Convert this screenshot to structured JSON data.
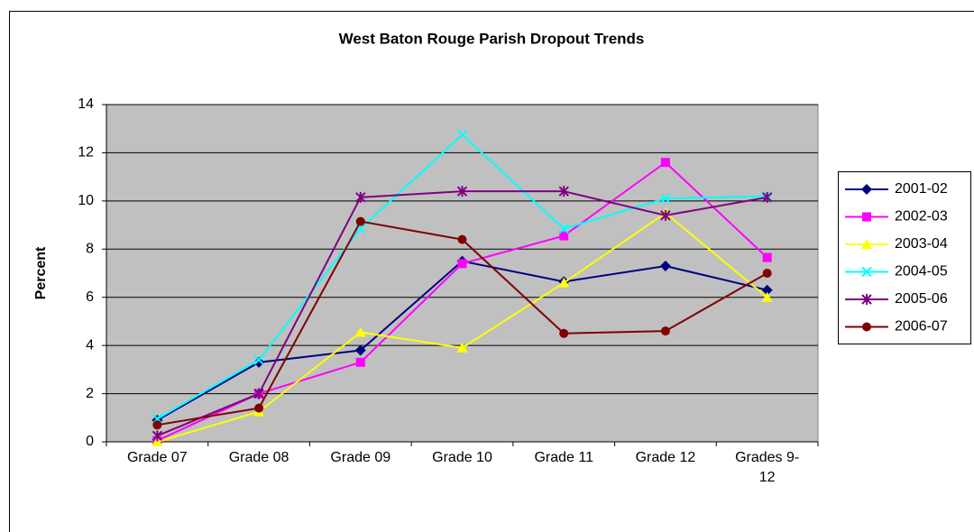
{
  "chart_data": {
    "type": "line",
    "title": "West Baton Rouge Parish Dropout Trends",
    "y_label": "Percent",
    "categories": [
      "Grade 07",
      "Grade 08",
      "Grade 09",
      "Grade 10",
      "Grade 11",
      "Grade 12",
      "Grades 9-12"
    ],
    "series": [
      {
        "name": "2001-02",
        "color": "#000080",
        "marker": "diamond",
        "values": [
          0.9,
          3.3,
          3.8,
          7.5,
          6.65,
          7.3,
          6.3
        ]
      },
      {
        "name": "2002-03",
        "color": "#ff00ff",
        "marker": "square",
        "values": [
          0.05,
          2.0,
          3.3,
          7.4,
          8.55,
          11.6,
          7.65
        ]
      },
      {
        "name": "2003-04",
        "color": "#ffff00",
        "marker": "triangle",
        "values": [
          0,
          1.25,
          4.55,
          3.9,
          6.6,
          9.5,
          6.0
        ]
      },
      {
        "name": "2004-05",
        "color": "#00ffff",
        "marker": "x",
        "values": [
          0.95,
          3.4,
          8.85,
          12.75,
          8.85,
          10.1,
          10.2
        ]
      },
      {
        "name": "2005-06",
        "color": "#800080",
        "marker": "star",
        "values": [
          0.25,
          2.0,
          10.15,
          10.4,
          10.4,
          9.4,
          10.15
        ]
      },
      {
        "name": "2006-07",
        "color": "#800000",
        "marker": "circle",
        "values": [
          0.7,
          1.4,
          9.15,
          8.4,
          4.5,
          4.6,
          7.0
        ]
      }
    ],
    "ylim": [
      0,
      14
    ],
    "yticks": [
      0,
      2,
      4,
      6,
      8,
      10,
      12,
      14
    ],
    "grid": true,
    "legend": "right"
  }
}
